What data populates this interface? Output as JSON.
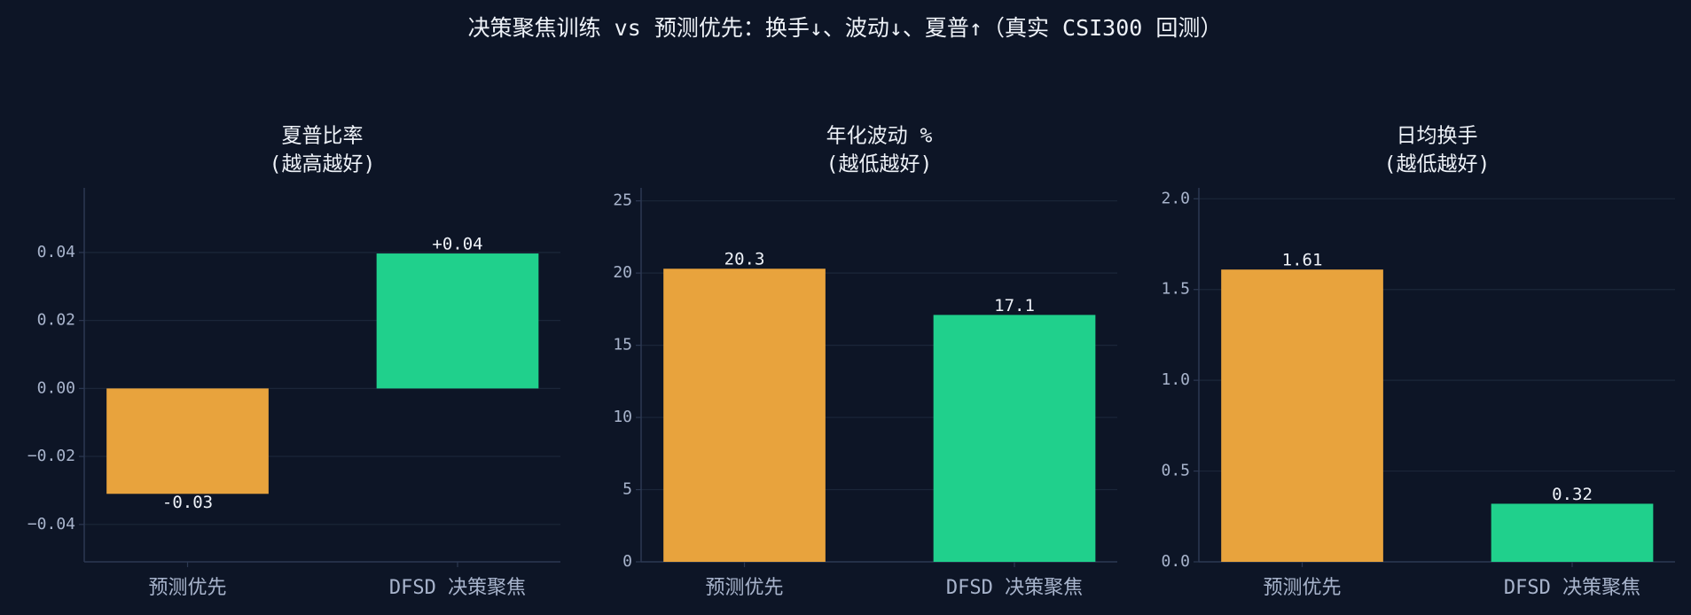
{
  "title": "决策聚焦训练 vs 预测优先：换手↓、波动↓、夏普↑（真实 CSI300 回测）",
  "chart_data": [
    {
      "type": "bar",
      "title": "夏普比率",
      "subtitle": "(越高越好)",
      "categories": [
        "预测优先",
        "DFSD 决策聚焦"
      ],
      "values": [
        -0.031,
        0.0397
      ],
      "value_labels": [
        "-0.03",
        "+0.04"
      ],
      "colors": [
        "#e8a33d",
        "#20d08c"
      ],
      "ylim": [
        -0.051,
        0.059
      ],
      "yticks": [
        {
          "value": -0.04,
          "label": "−0.04"
        },
        {
          "value": -0.02,
          "label": "−0.02"
        },
        {
          "value": 0,
          "label": "0.00"
        },
        {
          "value": 0.02,
          "label": "0.02"
        },
        {
          "value": 0.04,
          "label": "0.04"
        }
      ],
      "grid": true
    },
    {
      "type": "bar",
      "title": "年化波动 %",
      "subtitle": "(越低越好)",
      "categories": [
        "预测优先",
        "DFSD 决策聚焦"
      ],
      "values": [
        20.3,
        17.1
      ],
      "colors": [
        "#e8a33d",
        "#20d08c"
      ],
      "ylim": [
        0,
        25.9
      ],
      "yticks": [
        0,
        5,
        10,
        15,
        20,
        25
      ],
      "grid": true
    },
    {
      "type": "bar",
      "title": "日均换手",
      "subtitle": "(越低越好)",
      "categories": [
        "预测优先",
        "DFSD 决策聚焦"
      ],
      "values": [
        1.61,
        0.32
      ],
      "colors": [
        "#e8a33d",
        "#20d08c"
      ],
      "ylim": [
        0,
        2.06
      ],
      "yticks": [
        {
          "value": 0,
          "label": "0.0"
        },
        0.5,
        {
          "value": 1,
          "label": "1.0"
        },
        1.5,
        {
          "value": 2,
          "label": "2.0"
        }
      ],
      "grid": true
    }
  ]
}
